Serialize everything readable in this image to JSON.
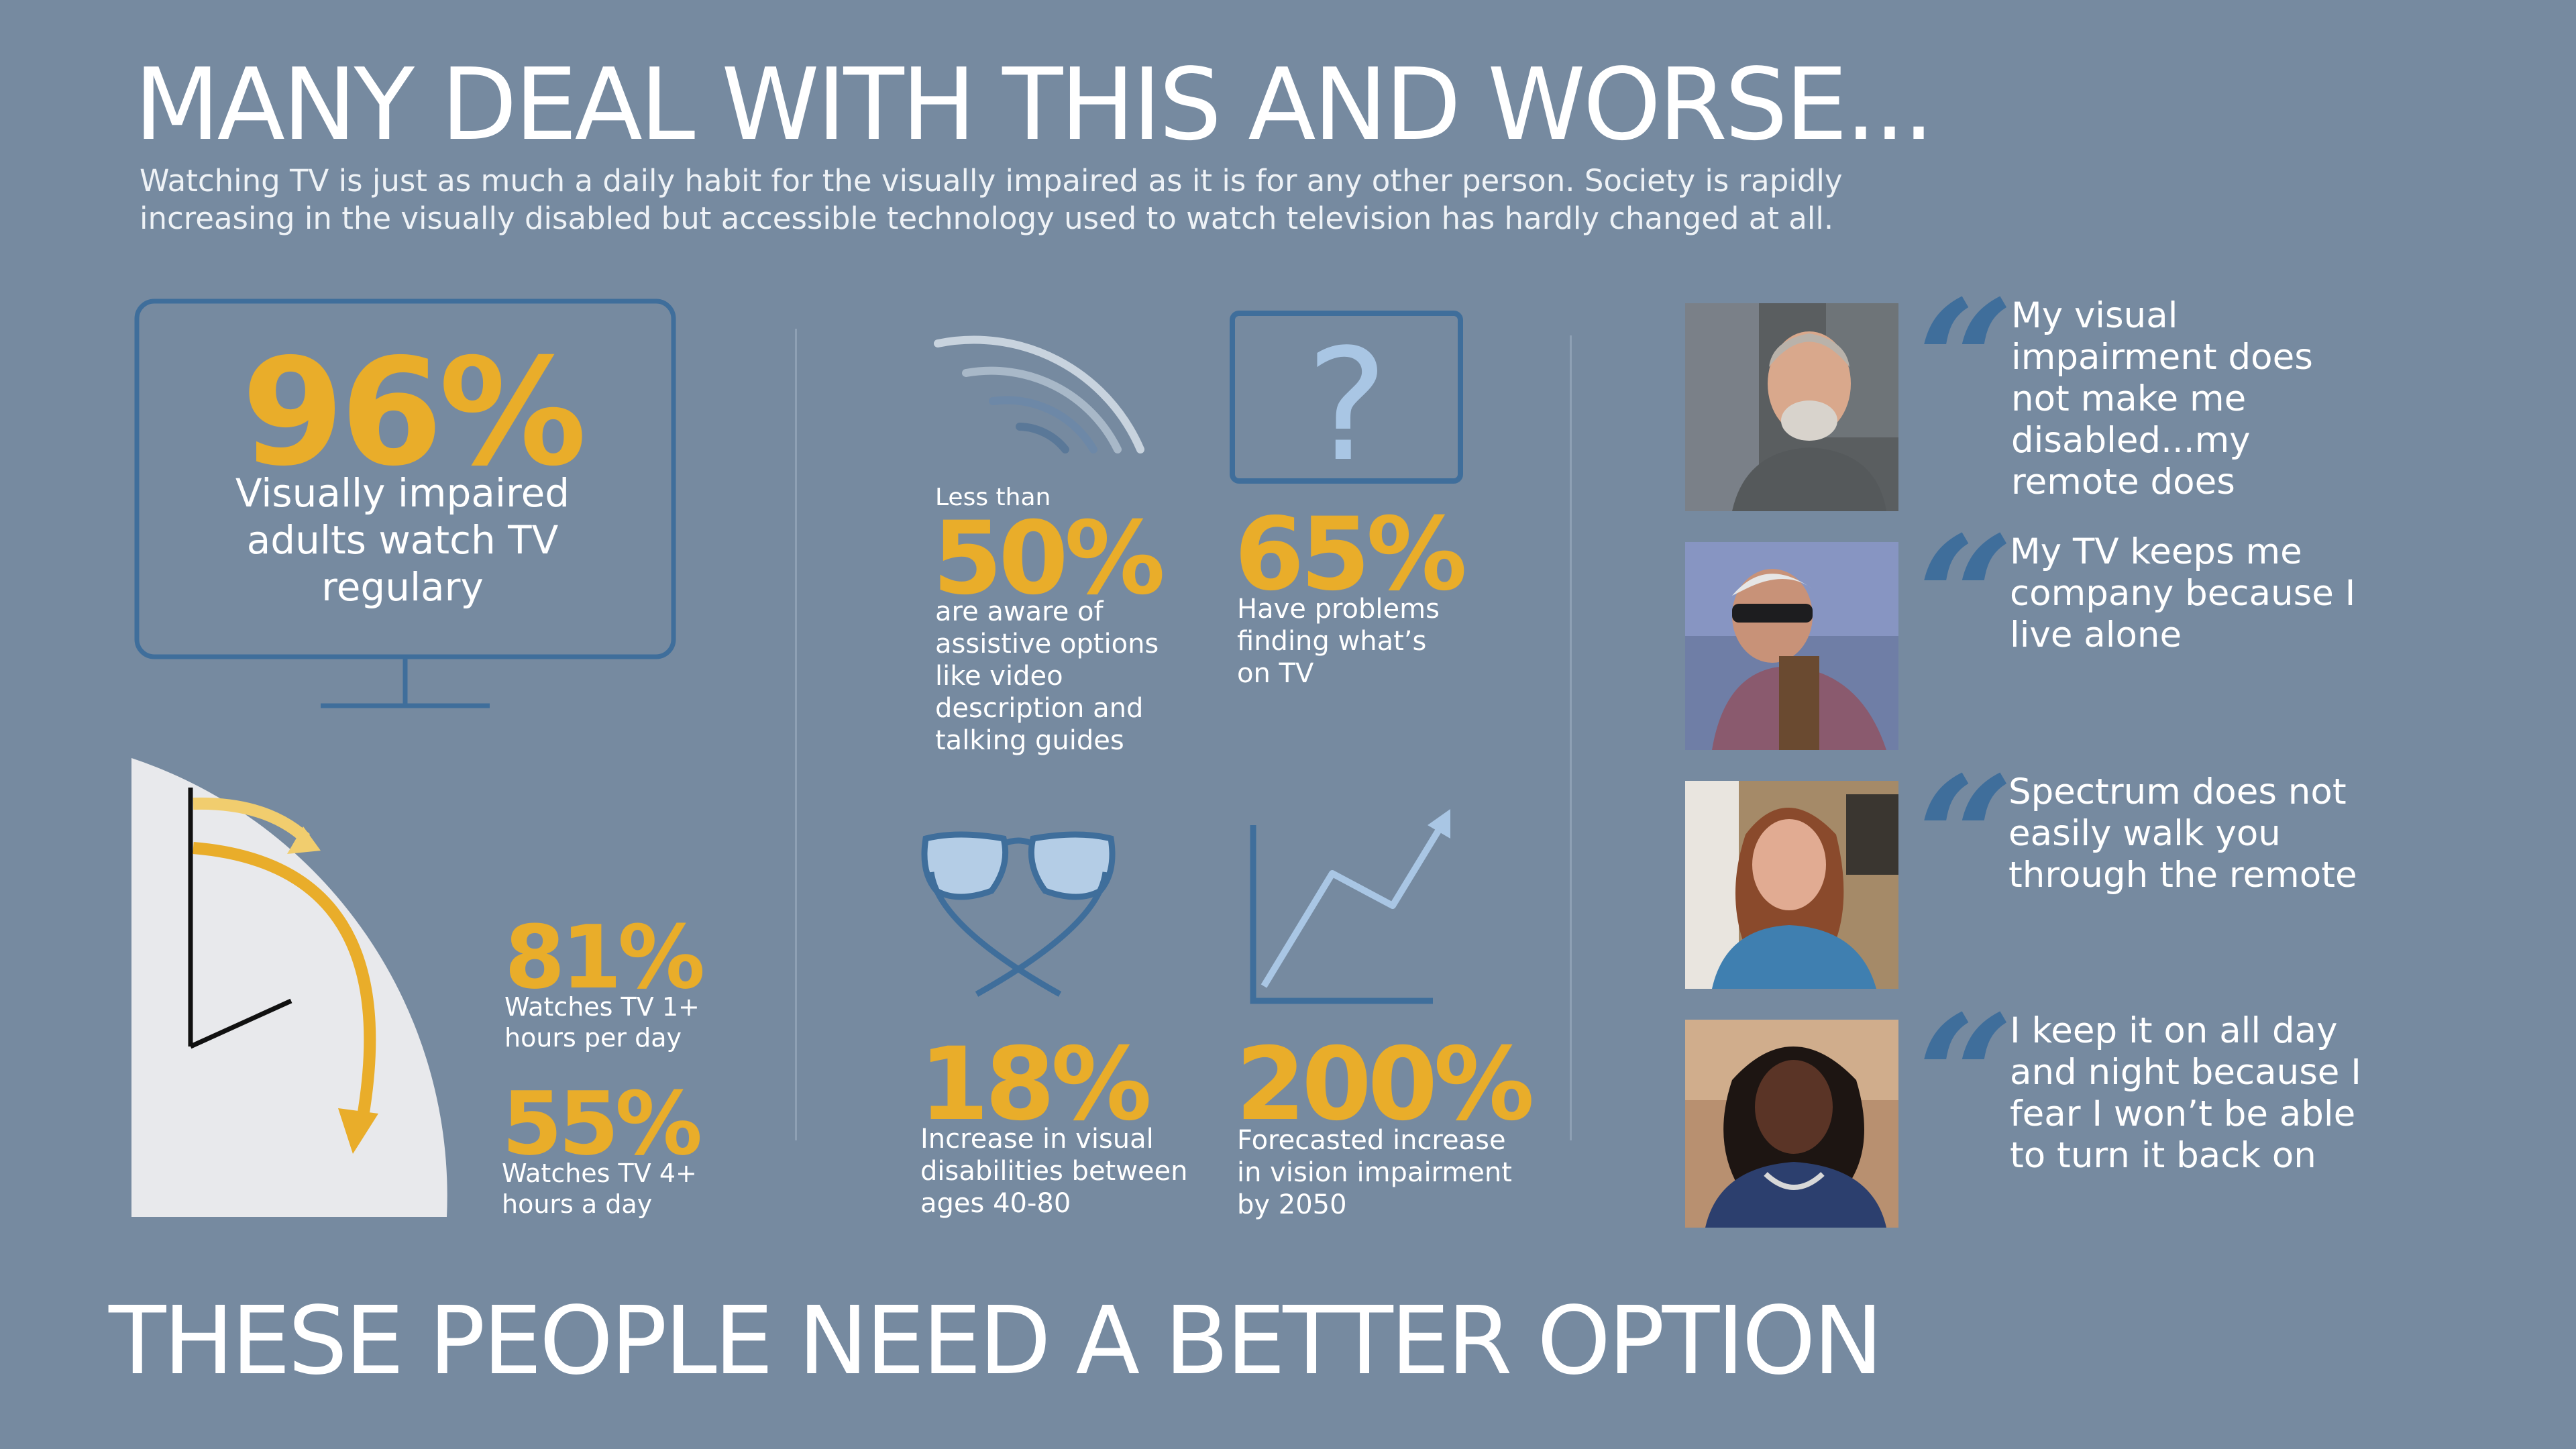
{
  "header": {
    "title": "MANY DEAL WITH THIS AND WORSE...",
    "subtitle_line1": "Watching TV is just as much a daily habit for the visually impaired as it is for any other person. Society is rapidly",
    "subtitle_line2": "increasing in the visually disabled but accessible technology used to watch television has hardly changed at all."
  },
  "tv_stat": {
    "value": "96%",
    "label": "Visually impaired adults watch TV regulary"
  },
  "clock_stats": [
    {
      "value": "81%",
      "label_line1": "Watches TV  1+",
      "label_line2": "hours per day"
    },
    {
      "value": "55%",
      "label_line1": "Watches TV 4+",
      "label_line2": "hours a day"
    }
  ],
  "stats": {
    "aware": {
      "prefix": "Less than",
      "value": "50%",
      "label": "are aware of assistive options like video description and talking guides"
    },
    "finding": {
      "icon_glyph": "?",
      "value": "65%",
      "label": "Have problems finding what’s on TV"
    },
    "increase": {
      "value": "18%",
      "label": "Increase in visual disabilities between ages 40-80"
    },
    "forecast": {
      "value": "200%",
      "label": "Forecasted increase in vision impairment by 2050"
    }
  },
  "quotes": [
    {
      "text": "My visual impairment does not make me disabled...my remote does"
    },
    {
      "text": "My TV keeps me company because I live alone"
    },
    {
      "text": "Spectrum does not easily walk you through the remote"
    },
    {
      "text": "I keep it on all day and night because I fear I won’t be able to turn it back on"
    }
  ],
  "quote_mark": "“",
  "footer": "THESE PEOPLE NEED A BETTER OPTION",
  "colors": {
    "background": "#768aa0",
    "accent_yellow": "#e9ad2a",
    "dark_blue": "#3f6e9b",
    "light_blue": "#9fc0df"
  },
  "icons": [
    "tv-icon",
    "clock-icon",
    "signal-waves-icon",
    "question-screen-icon",
    "glasses-icon",
    "line-chart-icon",
    "quote-mark-icon"
  ]
}
